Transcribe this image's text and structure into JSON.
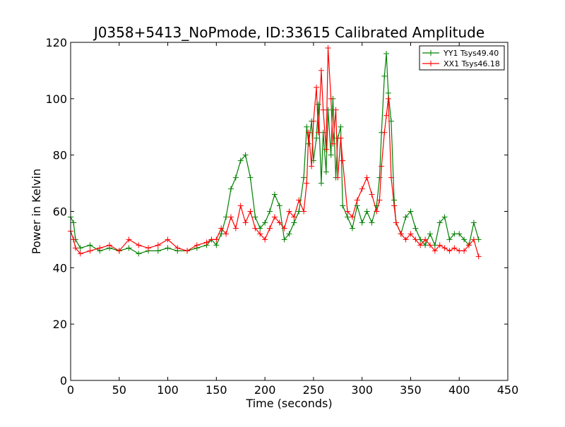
{
  "chart_data": {
    "type": "line",
    "title": "J0358+5413_NoPmode, ID:33615 Calibrated Amplitude",
    "xlabel": "Time (seconds)",
    "ylabel": "Power in Kelvin",
    "xlim": [
      0,
      450
    ],
    "ylim": [
      0,
      120
    ],
    "xticks": [
      0,
      50,
      100,
      150,
      200,
      250,
      300,
      350,
      400,
      450
    ],
    "yticks": [
      0,
      20,
      40,
      60,
      80,
      100,
      120
    ],
    "grid": false,
    "legend_position": "top-right",
    "marker": "+",
    "series": [
      {
        "name": "YY1 Tsys49.40",
        "color": "#008000",
        "x": [
          0,
          3,
          5,
          10,
          20,
          30,
          40,
          50,
          60,
          70,
          80,
          90,
          100,
          110,
          120,
          130,
          140,
          145,
          150,
          155,
          160,
          165,
          170,
          175,
          180,
          185,
          190,
          195,
          200,
          205,
          210,
          215,
          220,
          225,
          230,
          235,
          240,
          243,
          245,
          248,
          250,
          253,
          255,
          258,
          260,
          263,
          265,
          268,
          270,
          273,
          275,
          278,
          280,
          285,
          290,
          295,
          300,
          305,
          310,
          315,
          318,
          320,
          323,
          325,
          327,
          330,
          333,
          335,
          340,
          345,
          350,
          355,
          360,
          365,
          370,
          375,
          380,
          385,
          390,
          395,
          400,
          405,
          410,
          415,
          420
        ],
        "y": [
          58,
          56,
          50,
          47,
          48,
          46,
          47,
          46,
          47,
          45,
          46,
          46,
          47,
          46,
          46,
          47,
          48,
          50,
          48,
          52,
          58,
          68,
          72,
          78,
          80,
          72,
          58,
          54,
          56,
          60,
          66,
          62,
          50,
          52,
          56,
          60,
          72,
          90,
          84,
          92,
          78,
          86,
          98,
          70,
          88,
          74,
          96,
          80,
          100,
          72,
          86,
          90,
          62,
          58,
          54,
          62,
          56,
          60,
          56,
          62,
          72,
          88,
          108,
          116,
          102,
          92,
          64,
          56,
          52,
          58,
          60,
          54,
          50,
          48,
          52,
          48,
          56,
          58,
          50,
          52,
          52,
          50,
          48,
          56,
          50
        ]
      },
      {
        "name": "XX1 Tsys46.18",
        "color": "#ff0000",
        "x": [
          0,
          3,
          5,
          10,
          20,
          30,
          40,
          50,
          60,
          70,
          80,
          90,
          100,
          110,
          120,
          130,
          140,
          145,
          150,
          155,
          160,
          165,
          170,
          175,
          180,
          185,
          190,
          195,
          200,
          205,
          210,
          215,
          220,
          225,
          230,
          235,
          240,
          243,
          245,
          248,
          250,
          253,
          255,
          258,
          260,
          263,
          265,
          268,
          270,
          273,
          275,
          278,
          280,
          285,
          290,
          295,
          300,
          305,
          310,
          315,
          318,
          320,
          323,
          325,
          327,
          330,
          333,
          335,
          340,
          345,
          350,
          355,
          360,
          365,
          370,
          375,
          380,
          385,
          390,
          395,
          400,
          405,
          410,
          415,
          420
        ],
        "y": [
          53,
          50,
          47,
          45,
          46,
          47,
          48,
          46,
          50,
          48,
          47,
          48,
          50,
          47,
          46,
          48,
          49,
          50,
          50,
          54,
          52,
          58,
          54,
          62,
          56,
          60,
          54,
          52,
          50,
          54,
          58,
          56,
          54,
          60,
          58,
          64,
          60,
          70,
          88,
          76,
          92,
          104,
          88,
          110,
          96,
          82,
          118,
          100,
          84,
          96,
          72,
          86,
          78,
          60,
          58,
          64,
          68,
          72,
          66,
          60,
          64,
          76,
          88,
          94,
          100,
          72,
          62,
          56,
          52,
          50,
          52,
          50,
          48,
          50,
          48,
          46,
          48,
          47,
          46,
          47,
          46,
          46,
          48,
          50,
          44
        ]
      }
    ]
  }
}
